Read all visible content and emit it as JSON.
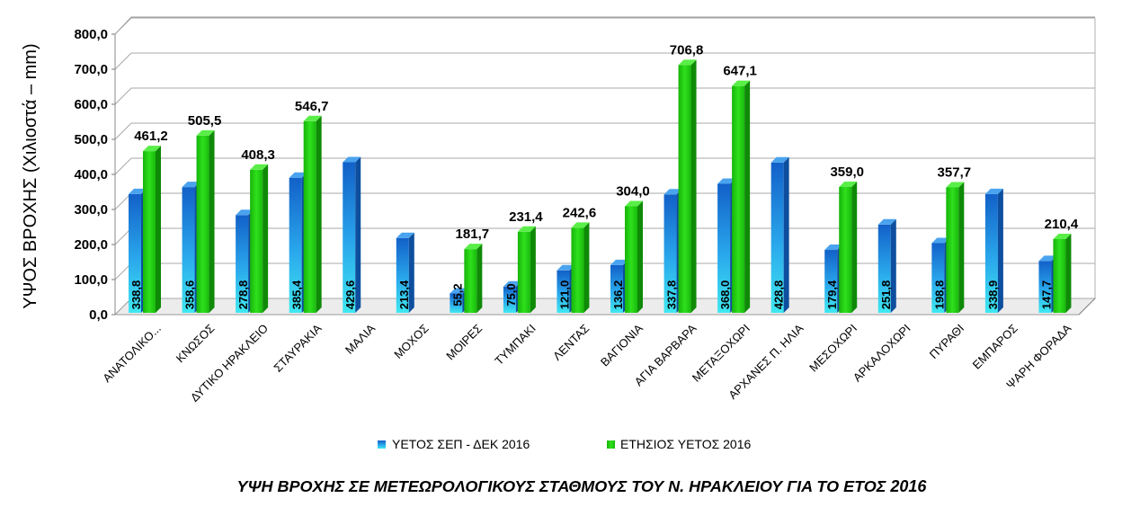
{
  "chart_data": {
    "type": "bar",
    "title": "ΥΨΗ ΒΡΟΧΗΣ ΣΕ ΜΕΤΕΩΡΟΛΟΓΙΚΟΥΣ ΣΤΑΘΜΟΥΣ ΤΟΥ Ν. ΗΡΑΚΛΕΙΟΥ ΓΙΑ ΤΟ ΕΤΟΣ 2016",
    "ylabel": "ΥΨΟΣ ΒΡΟΧΗΣ (Χιλιοστά – mm)",
    "xlabel": "",
    "ylim": [
      0,
      800
    ],
    "yticks": [
      "0,0",
      "100,0",
      "200,0",
      "300,0",
      "400,0",
      "500,0",
      "600,0",
      "700,0",
      "800,0"
    ],
    "legend_position": "bottom",
    "grid": true,
    "categories": [
      "ΑΝΑΤΟΛΙΚΟ...",
      "ΚΝΩΣΟΣ",
      "ΔΥΤΙΚΟ ΗΡΑΚΛΕΙΟ",
      "ΣΤΑΥΡΑΚΙΑ",
      "ΜΑΛΙΑ",
      "ΜΟΧΟΣ",
      "ΜΟΙΡΕΣ",
      "ΤΥΜΠΑΚΙ",
      "ΛΕΝΤΑΣ",
      "ΒΑΓΙΟΝΙΑ",
      "ΑΓΙΑ ΒΑΡΒΑΡΑ",
      "ΜΕΤΑΞΟΧΩΡΙ",
      "ΑΡΧΑΝΕΣ Π. ΗΛΙΑ",
      "ΜΕΣΟΧΩΡΙ",
      "ΑΡΚΑΛΟΧΩΡΙ",
      "ΠΥΡΑΘΙ",
      "ΕΜΠΑΡΟΣ",
      "ΨΑΡΗ ΦΟΡΑΔΑ"
    ],
    "series": [
      {
        "name": "ΥΕΤΟΣ ΣΕΠ - ΔΕΚ 2016",
        "color": "#1f8de0",
        "values": [
          338.8,
          358.6,
          278.8,
          385.4,
          429.6,
          213.4,
          55.2,
          75.0,
          121.0,
          136.2,
          337.8,
          368.0,
          428.8,
          179.4,
          251.8,
          198.8,
          338.9,
          147.7
        ],
        "labels": [
          "338,8",
          "358,6",
          "278,8",
          "385,4",
          "429,6",
          "213,4",
          "55,2",
          "75,0",
          "121,0",
          "136,2",
          "337,8",
          "368,0",
          "428,8",
          "179,4",
          "251,8",
          "198,8",
          "338,9",
          "147,7"
        ]
      },
      {
        "name": "ΕΤΗΣΙΟΣ ΥΕΤΟΣ 2016",
        "color": "#22cc10",
        "values": [
          461.2,
          505.5,
          408.3,
          546.7,
          null,
          null,
          181.7,
          231.4,
          242.6,
          304.0,
          706.8,
          647.1,
          null,
          359.0,
          null,
          357.7,
          null,
          210.4
        ],
        "labels": [
          "461,2",
          "505,5",
          "408,3",
          "546,7",
          null,
          null,
          "181,7",
          "231,4",
          "242,6",
          "304,0",
          "706,8",
          "647,1",
          null,
          "359,0",
          null,
          "357,7",
          null,
          "210,4"
        ]
      }
    ]
  }
}
